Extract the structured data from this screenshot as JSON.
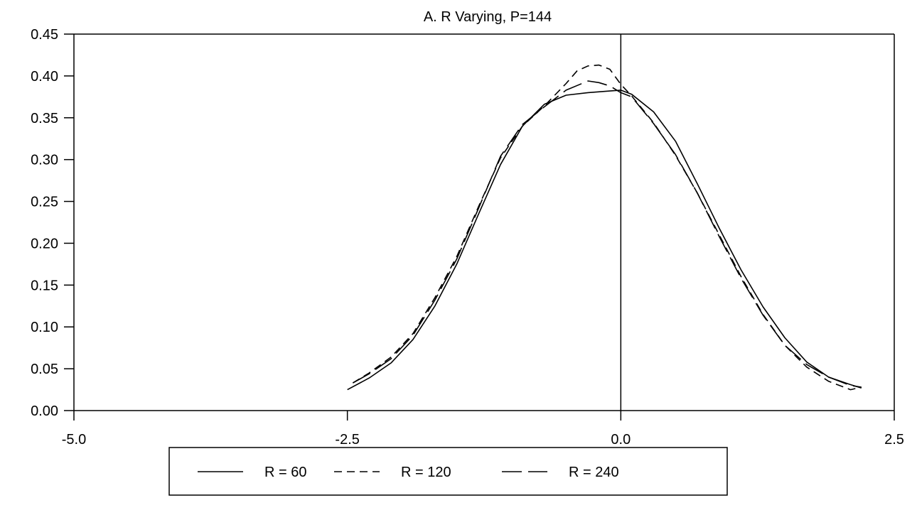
{
  "chart_data": {
    "type": "line",
    "title": "A.  R Varying, P=144",
    "xlabel": "",
    "ylabel": "",
    "xlim": [
      -5.0,
      2.5
    ],
    "ylim": [
      0.0,
      0.45
    ],
    "x_ticks": [
      "-5.0",
      "-2.5",
      "0.0",
      "2.5"
    ],
    "y_ticks": [
      "0.00",
      "0.05",
      "0.10",
      "0.15",
      "0.20",
      "0.25",
      "0.30",
      "0.35",
      "0.40",
      "0.45"
    ],
    "grid": false,
    "vertical_reference_line_x": 0.0,
    "legend_position": "bottom-center",
    "series": [
      {
        "name": "R = 60",
        "style": "solid",
        "x": [
          -2.5,
          -2.3,
          -2.1,
          -1.9,
          -1.7,
          -1.5,
          -1.3,
          -1.1,
          -0.9,
          -0.7,
          -0.5,
          -0.3,
          -0.1,
          0.0,
          0.1,
          0.3,
          0.5,
          0.7,
          0.9,
          1.1,
          1.3,
          1.5,
          1.7,
          1.9,
          2.1,
          2.2
        ],
        "values": [
          0.025,
          0.039,
          0.057,
          0.085,
          0.125,
          0.175,
          0.235,
          0.294,
          0.34,
          0.366,
          0.377,
          0.38,
          0.382,
          0.383,
          0.378,
          0.357,
          0.322,
          0.271,
          0.218,
          0.168,
          0.124,
          0.087,
          0.058,
          0.04,
          0.031,
          0.027
        ]
      },
      {
        "name": "R = 120",
        "style": "short-dash",
        "x": [
          -2.45,
          -2.3,
          -2.1,
          -1.9,
          -1.7,
          -1.5,
          -1.3,
          -1.1,
          -0.9,
          -0.7,
          -0.5,
          -0.4,
          -0.3,
          -0.2,
          -0.1,
          0.0,
          0.1,
          0.3,
          0.5,
          0.7,
          0.9,
          1.1,
          1.3,
          1.5,
          1.7,
          1.9,
          2.1,
          2.2
        ],
        "values": [
          0.033,
          0.045,
          0.064,
          0.092,
          0.135,
          0.184,
          0.244,
          0.302,
          0.34,
          0.364,
          0.391,
          0.406,
          0.412,
          0.413,
          0.408,
          0.39,
          0.376,
          0.344,
          0.305,
          0.26,
          0.21,
          0.16,
          0.115,
          0.078,
          0.052,
          0.035,
          0.025,
          0.028
        ]
      },
      {
        "name": "R = 240",
        "style": "long-dash",
        "x": [
          -2.45,
          -2.3,
          -2.1,
          -1.9,
          -1.7,
          -1.5,
          -1.3,
          -1.1,
          -0.9,
          -0.7,
          -0.5,
          -0.3,
          -0.2,
          -0.1,
          0.0,
          0.1,
          0.3,
          0.5,
          0.7,
          0.9,
          1.1,
          1.3,
          1.5,
          1.7,
          1.9,
          2.1,
          2.2
        ],
        "values": [
          0.033,
          0.044,
          0.062,
          0.09,
          0.132,
          0.181,
          0.242,
          0.304,
          0.342,
          0.363,
          0.383,
          0.394,
          0.392,
          0.388,
          0.38,
          0.375,
          0.343,
          0.306,
          0.26,
          0.208,
          0.158,
          0.114,
          0.078,
          0.055,
          0.04,
          0.03,
          0.028
        ]
      }
    ]
  }
}
